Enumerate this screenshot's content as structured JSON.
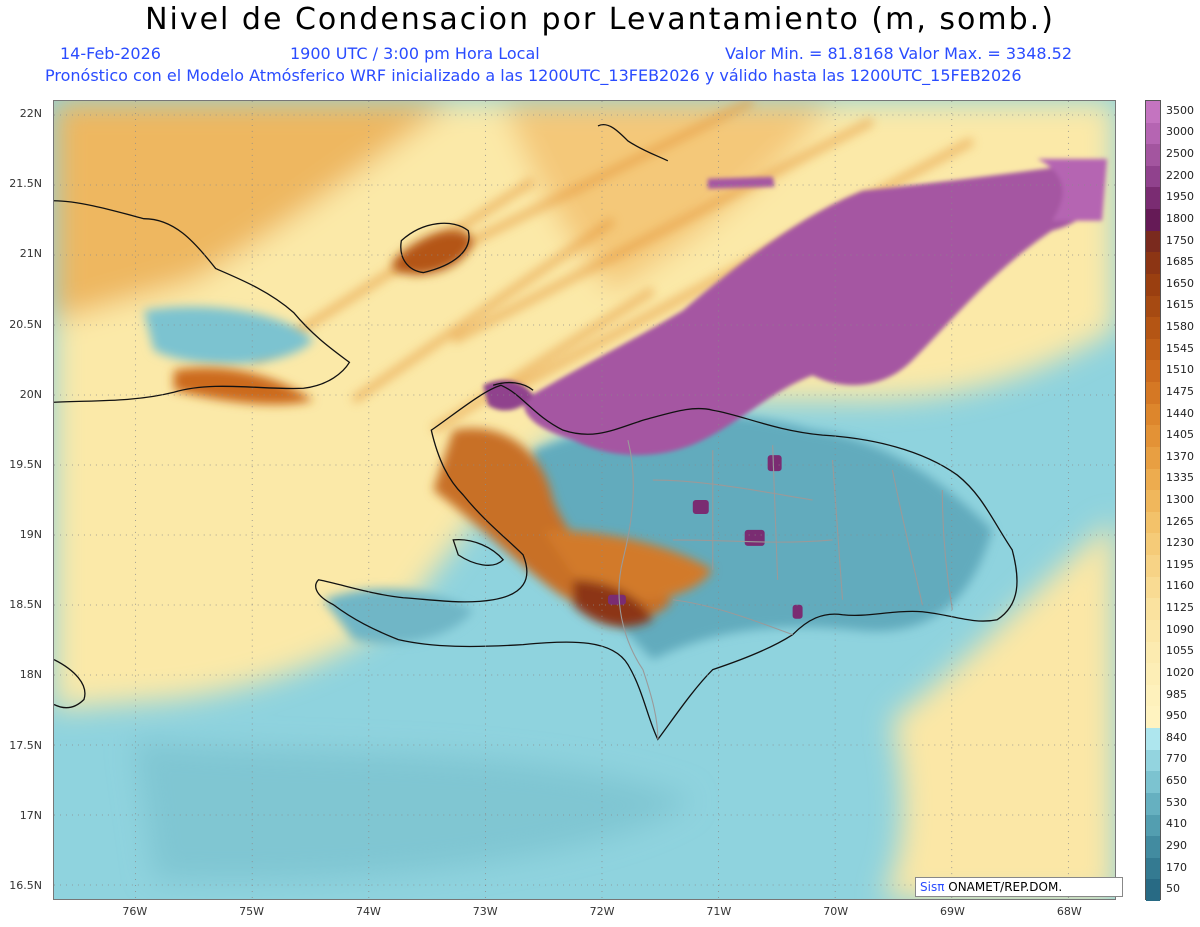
{
  "header": {
    "title": "Nivel de Condensacion por Levantamiento (m, somb.)",
    "date": "14-Feb-2026",
    "time": "1900 UTC / 3:00 pm Hora Local",
    "minmax": "Valor Min. = 81.8168  Valor Max. = 3348.52",
    "forecast": "Pronóstico con el Modelo Atmósferico WRF inicializado a las 1200UTC_13FEB2026 y válido hasta las  1200UTC_15FEB2026"
  },
  "map": {
    "lat_labels": [
      "22N",
      "21.5N",
      "21N",
      "20.5N",
      "20N",
      "19.5N",
      "19N",
      "18.5N",
      "18N",
      "17.5N",
      "17N",
      "16.5N"
    ],
    "lon_labels": [
      "76W",
      "75W",
      "74W",
      "73W",
      "72W",
      "71W",
      "70W",
      "69W",
      "68W"
    ],
    "lat_range": [
      16.4,
      22.1
    ],
    "lon_range": [
      -76.7,
      -67.6
    ],
    "colors": {
      "land_line": "#111111",
      "border_line": "#9a9a9a",
      "grid": "#8a8a8a"
    }
  },
  "colorbar": {
    "labels": [
      "3500",
      "3000",
      "2500",
      "2200",
      "1950",
      "1800",
      "1750",
      "1685",
      "1650",
      "1615",
      "1580",
      "1545",
      "1510",
      "1475",
      "1440",
      "1405",
      "1370",
      "1335",
      "1300",
      "1265",
      "1230",
      "1195",
      "1160",
      "1125",
      "1090",
      "1055",
      "1020",
      "985",
      "950",
      "840",
      "770",
      "650",
      "530",
      "410",
      "290",
      "170",
      "50"
    ],
    "colors": [
      "#c474c0",
      "#b565b2",
      "#a3559f",
      "#90428d",
      "#7a2c72",
      "#651a56",
      "#7a2a1e",
      "#8c3514",
      "#9a3f10",
      "#a64a12",
      "#b45514",
      "#c06018",
      "#cc6b1e",
      "#d57824",
      "#dd862c",
      "#e39236",
      "#e89f42",
      "#edac4f",
      "#f0b75c",
      "#f3c26a",
      "#f5cb78",
      "#f7d386",
      "#f9db93",
      "#fae29f",
      "#fbe7a8",
      "#fcebb0",
      "#fdeeb6",
      "#fef1bc",
      "#fff3c0",
      "#aee6ee",
      "#93d4df",
      "#7cc3d0",
      "#66b0c0",
      "#539eb0",
      "#428ba0",
      "#347a91",
      "#286a84"
    ]
  },
  "credit": {
    "brand": "Sisπ",
    "text": " ONAMET/REP.DOM."
  }
}
